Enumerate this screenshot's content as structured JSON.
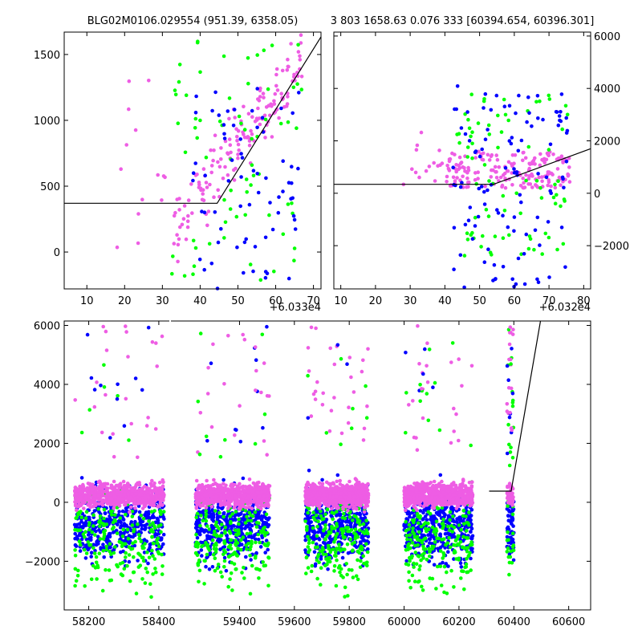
{
  "colors": {
    "green": "#00ff00",
    "blue": "#0000ff",
    "magenta": "#ee5de4",
    "line": "#000000"
  },
  "chart_data": [
    {
      "id": "top-left",
      "type": "scatter",
      "title": "BLG02M0106.029554 (951.39, 6358.05)",
      "xlim": [
        4,
        72
      ],
      "ylim": [
        -280,
        1670
      ],
      "x_ticks": [
        10,
        20,
        30,
        40,
        50,
        60,
        70
      ],
      "y_ticks": [
        0,
        500,
        1000,
        1500
      ],
      "y_tick_side": "left",
      "x_offset_label": "+6.033e4",
      "model_line": [
        [
          4,
          370
        ],
        [
          44.5,
          370
        ],
        [
          73,
          1680
        ]
      ],
      "clusters": [
        {
          "series": "magenta",
          "n": 160,
          "xr": [
            33,
            67
          ],
          "yr": [
            -100,
            1650
          ],
          "grow": 1
        },
        {
          "series": "magenta",
          "n": 14,
          "xr": [
            17,
            31
          ],
          "yr": [
            0,
            1450
          ],
          "grow": 0
        },
        {
          "series": "green",
          "n": 70,
          "xr": [
            32,
            67
          ],
          "yr": [
            -250,
            1650
          ],
          "grow": 0
        },
        {
          "series": "blue",
          "n": 70,
          "xr": [
            38,
            67
          ],
          "yr": [
            -280,
            1300
          ],
          "grow": 0
        }
      ]
    },
    {
      "id": "top-right",
      "type": "scatter",
      "title": "3 803 1658.63 0.076 333 [60394.654, 60396.301]",
      "xlim": [
        8,
        82
      ],
      "ylim": [
        -3650,
        6150
      ],
      "x_ticks": [
        10,
        20,
        30,
        40,
        50,
        60,
        70,
        80
      ],
      "y_ticks": [
        -2000,
        0,
        2000,
        4000,
        6000
      ],
      "y_tick_side": "right",
      "x_offset_label": "+6.032e4",
      "model_line": [
        [
          8,
          340
        ],
        [
          54,
          340
        ],
        [
          82,
          1700
        ]
      ],
      "clusters": [
        {
          "series": "magenta",
          "n": 180,
          "xr": [
            40,
            76
          ],
          "yr": [
            200,
            1600
          ],
          "grow": 0
        },
        {
          "series": "magenta",
          "n": 16,
          "xr": [
            28,
            42
          ],
          "yr": [
            300,
            2500
          ],
          "grow": 0
        },
        {
          "series": "green",
          "n": 80,
          "xr": [
            42,
            76
          ],
          "yr": [
            -2400,
            3800
          ],
          "grow": 0
        },
        {
          "series": "blue",
          "n": 110,
          "xr": [
            42,
            76
          ],
          "yr": [
            -3600,
            4200
          ],
          "grow": 0
        }
      ]
    },
    {
      "id": "bottom",
      "type": "scatter",
      "title": "",
      "xlim": [
        58130,
        60680
      ],
      "ylim": [
        -3650,
        6150
      ],
      "x_ticks": [
        58200,
        58400,
        59400,
        59600,
        59800,
        60000,
        60200,
        60400,
        60600
      ],
      "y_ticks": [
        -2000,
        0,
        2000,
        4000,
        6000
      ],
      "y_tick_side": "left",
      "x_offset_label": "",
      "break_at": 58430,
      "x_breaks": [
        [
          58130,
          58430
        ],
        [
          59150,
          60680
        ]
      ],
      "model_line": [
        [
          60310,
          380
        ],
        [
          60390,
          380
        ],
        [
          60500,
          6300
        ]
      ],
      "seasons": [
        {
          "xr": [
            58160,
            58415
          ]
        },
        {
          "xr": [
            59240,
            59510
          ]
        },
        {
          "xr": [
            59640,
            59870
          ]
        },
        {
          "xr": [
            60000,
            60250
          ]
        },
        {
          "xr": [
            60375,
            60400
          ]
        }
      ]
    }
  ]
}
